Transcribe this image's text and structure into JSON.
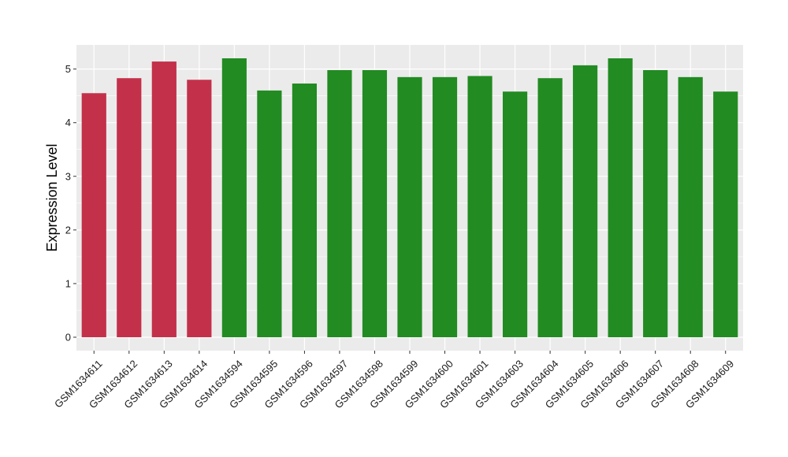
{
  "chart_data": {
    "type": "bar",
    "title": "",
    "xlabel": "",
    "ylabel": "Expression Level",
    "ylim": [
      -0.25,
      5.45
    ],
    "yticks": [
      0,
      1,
      2,
      3,
      4,
      5
    ],
    "grid": true,
    "legend": "none",
    "categories": [
      "GSM1634611",
      "GSM1634612",
      "GSM1634613",
      "GSM1634614",
      "GSM1634594",
      "GSM1634595",
      "GSM1634596",
      "GSM1634597",
      "GSM1634598",
      "GSM1634599",
      "GSM1634600",
      "GSM1634601",
      "GSM1634603",
      "GSM1634604",
      "GSM1634605",
      "GSM1634606",
      "GSM1634607",
      "GSM1634608",
      "GSM1634609"
    ],
    "values": [
      4.55,
      4.83,
      5.14,
      4.8,
      5.2,
      4.6,
      4.73,
      4.98,
      4.98,
      4.85,
      4.85,
      4.87,
      4.58,
      4.83,
      5.07,
      5.2,
      4.98,
      4.85,
      4.58
    ],
    "group": [
      "red",
      "red",
      "red",
      "red",
      "green",
      "green",
      "green",
      "green",
      "green",
      "green",
      "green",
      "green",
      "green",
      "green",
      "green",
      "green",
      "green",
      "green",
      "green"
    ],
    "colors": {
      "red": "#c3304a",
      "green": "#228b22",
      "panel": "#ebebeb",
      "grid": "#ffffff"
    }
  }
}
